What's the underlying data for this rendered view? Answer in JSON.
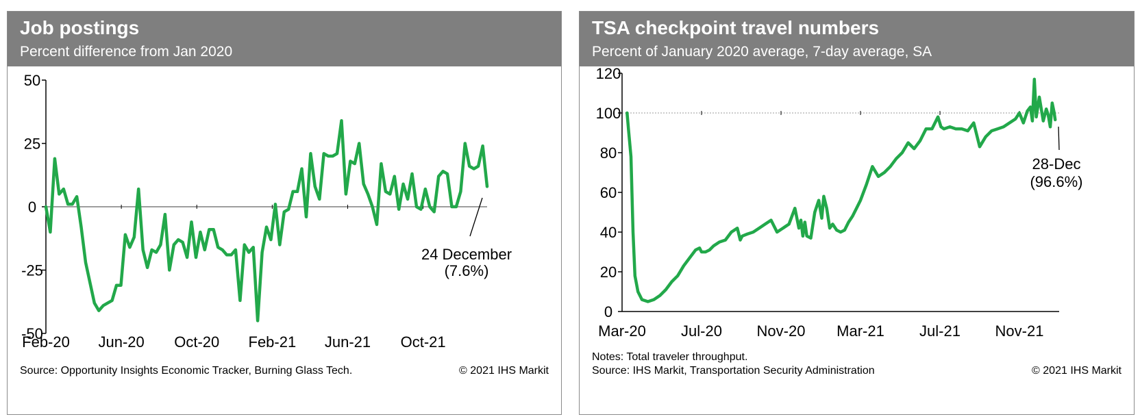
{
  "chart_data": [
    {
      "type": "line",
      "title": "Job postings",
      "subtitle": "Percent difference from Jan 2020",
      "ylim": [
        -50,
        50
      ],
      "yticks": [
        -50,
        -25,
        0,
        25,
        50
      ],
      "ytick_labels": [
        "-50",
        "-25",
        "0",
        "25",
        "50"
      ],
      "xlim": [
        0,
        100
      ],
      "xticks": [
        {
          "x": 0,
          "label": "Feb-20"
        },
        {
          "x": 17.1,
          "label": "Jun-20"
        },
        {
          "x": 34.2,
          "label": "Oct-20"
        },
        {
          "x": 51.3,
          "label": "Feb-21"
        },
        {
          "x": 68.4,
          "label": "Jun-21"
        },
        {
          "x": 85.5,
          "label": "Oct-21"
        }
      ],
      "reference_line": 0,
      "series": [
        {
          "name": "Job postings",
          "color": "#22a84a",
          "x": [
            0,
            1,
            2,
            3,
            4,
            5,
            6,
            7,
            8,
            9,
            10,
            11,
            12,
            13,
            14,
            15,
            16,
            17,
            18,
            19,
            20,
            21,
            22,
            23,
            24,
            25,
            26,
            27,
            28,
            29,
            30,
            31,
            32,
            33,
            34,
            35,
            36,
            37,
            38,
            39,
            40,
            41,
            42,
            43,
            44,
            45,
            46,
            47,
            48,
            49,
            50,
            51,
            52,
            53,
            54,
            55,
            56,
            57,
            58,
            59,
            60,
            61,
            62,
            63,
            64,
            65,
            66,
            67,
            68,
            69,
            70,
            71,
            72,
            73,
            74,
            75,
            76,
            77,
            78,
            79,
            80,
            81,
            82,
            83,
            84,
            85,
            86,
            87,
            88,
            89,
            90,
            91,
            92,
            93,
            94,
            95,
            96,
            97,
            98,
            99,
            100
          ],
          "y": [
            0,
            -10,
            19,
            5,
            7,
            1,
            1,
            4,
            -8,
            -22,
            -30,
            -38,
            -41,
            -39,
            -38,
            -37,
            -31,
            -31,
            -11,
            -16,
            -12,
            7,
            -17,
            -24,
            -17,
            -18,
            -15,
            -3,
            -25,
            -15,
            -13,
            -14,
            -20,
            -6,
            -20,
            -10,
            -17,
            -9,
            -9,
            -16,
            -17,
            -19,
            -19,
            -17,
            -37,
            -15,
            -18,
            -16,
            -45,
            -18,
            -8,
            -13,
            1,
            -15,
            -2,
            -1,
            6,
            6,
            15,
            -4,
            21,
            8,
            3,
            21,
            20,
            20,
            21,
            34,
            5,
            18,
            17,
            25,
            9,
            5,
            0,
            -7,
            17,
            6,
            5,
            12,
            -1,
            9,
            3,
            13,
            0,
            -1,
            7,
            0,
            -2,
            12,
            14,
            13,
            0,
            0,
            6,
            25,
            16,
            15,
            16,
            24,
            8
          ]
        }
      ],
      "annotation": {
        "line1": "24 December",
        "line2": "(7.6%)"
      },
      "source": "Source: Opportunity Insights Economic Tracker, Burning Glass Tech.",
      "copyright": "© 2021 IHS Markit"
    },
    {
      "type": "line",
      "title": "TSA checkpoint travel numbers",
      "subtitle": "Percent of January 2020 average, 7-day average, SA",
      "ylim": [
        0,
        120
      ],
      "yticks": [
        0,
        20,
        40,
        60,
        80,
        100,
        120
      ],
      "ytick_labels": [
        "0",
        "20",
        "40",
        "60",
        "80",
        "100",
        "120"
      ],
      "xlim": [
        0,
        22
      ],
      "xticks": [
        {
          "x": 0,
          "label": "Mar-20"
        },
        {
          "x": 4,
          "label": "Jul-20"
        },
        {
          "x": 8,
          "label": "Nov-20"
        },
        {
          "x": 12,
          "label": "Mar-21"
        },
        {
          "x": 16,
          "label": "Jul-21"
        },
        {
          "x": 20,
          "label": "Nov-21"
        }
      ],
      "reference_line": 100,
      "series": [
        {
          "name": "TSA checkpoint travel",
          "color": "#22a84a",
          "x": [
            0.25,
            0.32,
            0.45,
            0.55,
            0.65,
            0.8,
            1.0,
            1.3,
            1.6,
            1.9,
            2.2,
            2.5,
            2.8,
            3.1,
            3.4,
            3.7,
            3.9,
            4.0,
            4.2,
            4.4,
            4.6,
            4.9,
            5.2,
            5.5,
            5.8,
            5.95,
            6.05,
            6.3,
            6.6,
            6.9,
            7.2,
            7.5,
            7.8,
            8.1,
            8.4,
            8.7,
            8.9,
            9.0,
            9.1,
            9.2,
            9.3,
            9.5,
            9.7,
            9.9,
            10.05,
            10.15,
            10.3,
            10.45,
            10.6,
            10.8,
            11.0,
            11.2,
            11.4,
            11.6,
            11.8,
            12.0,
            12.3,
            12.6,
            12.9,
            13.2,
            13.5,
            13.8,
            14.1,
            14.4,
            14.7,
            15.0,
            15.3,
            15.6,
            15.9,
            16.05,
            16.2,
            16.5,
            16.8,
            17.1,
            17.4,
            17.7,
            18.0,
            18.3,
            18.6,
            18.9,
            19.2,
            19.5,
            19.8,
            20.0,
            20.2,
            20.4,
            20.55,
            20.65,
            20.75,
            20.85,
            21.0,
            21.2,
            21.35,
            21.45,
            21.55,
            21.65,
            21.75,
            21.8
          ],
          "y": [
            100,
            92,
            78,
            40,
            18,
            10,
            6,
            5,
            6,
            8,
            11,
            15,
            18,
            23,
            27,
            31,
            32,
            30,
            30,
            31,
            33,
            35,
            36,
            40,
            42,
            36,
            38,
            39,
            40,
            42,
            44,
            46,
            40,
            42,
            44,
            52,
            42,
            46,
            38,
            45,
            38,
            37,
            50,
            56,
            47,
            58,
            52,
            42,
            44,
            41,
            40,
            41,
            45,
            48,
            52,
            56,
            64,
            73,
            68,
            70,
            73,
            77,
            80,
            85,
            82,
            86,
            92,
            92,
            98,
            93,
            92,
            93,
            92,
            92,
            91,
            95,
            83,
            88,
            91,
            92,
            93,
            95,
            97,
            100,
            95,
            101,
            103,
            96,
            117,
            98,
            108,
            96,
            102,
            99,
            93,
            105,
            100,
            96.6
          ]
        }
      ],
      "annotation": {
        "line1": "28-Dec",
        "line2": "(96.6%)"
      },
      "notes": "Notes: Total traveler throughput.",
      "source": "Source: IHS Markit, Transportation Security Administration",
      "copyright": "© 2021 IHS Markit"
    }
  ]
}
